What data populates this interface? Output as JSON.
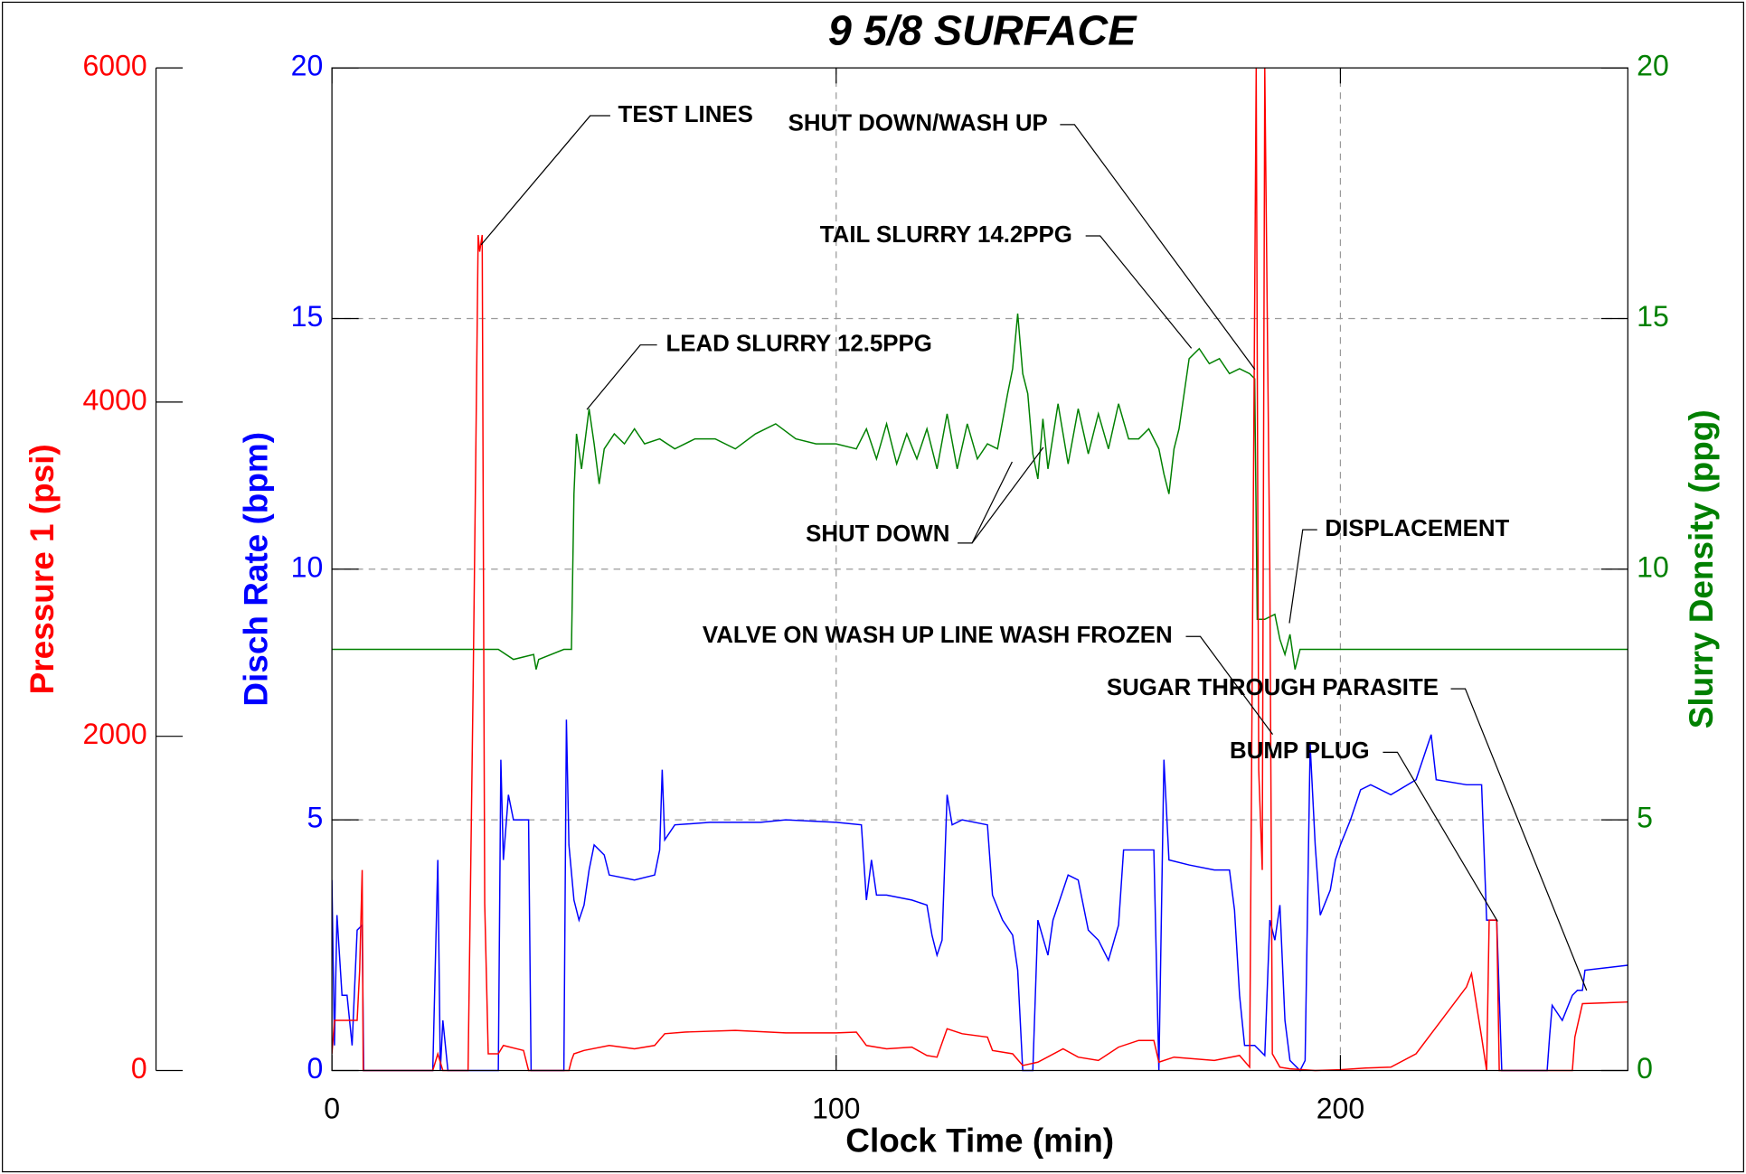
{
  "chart_data": {
    "type": "line",
    "title": "9 5/8 SURFACE",
    "x_label": "Clock Time (min)",
    "xlim": [
      0,
      257
    ],
    "xticks": [
      0,
      100,
      200
    ],
    "grid": true,
    "y_axes": [
      {
        "label": "Pressure 1 (psi)",
        "color": "#ff0000",
        "ylim": [
          0,
          6000
        ],
        "yticks": [
          0,
          2000,
          4000,
          6000
        ]
      },
      {
        "label": "Disch Rate (bpm)",
        "color": "#0000ff",
        "ylim": [
          0,
          20
        ],
        "yticks": [
          0,
          5,
          10,
          15,
          20
        ]
      },
      {
        "label": "Slurry Density (ppg)",
        "color": "#008000",
        "ylim": [
          0,
          20
        ],
        "yticks": [
          0,
          5,
          10,
          15,
          20
        ]
      }
    ],
    "series": [
      {
        "color": "#008000",
        "axis": 2,
        "x": [
          0,
          30,
          33,
          36,
          40,
          40.5,
          41,
          46,
          47.5,
          48,
          48.5,
          49.5,
          50.5,
          51,
          52,
          53,
          54,
          56,
          58,
          60,
          62,
          65,
          68,
          72,
          76,
          80,
          84,
          88,
          92,
          96,
          100,
          104,
          106,
          108,
          110,
          112,
          114,
          116,
          118,
          120,
          122,
          124,
          126,
          128,
          130,
          132,
          134,
          135,
          136,
          137,
          138,
          139,
          140,
          141,
          142,
          144,
          146,
          148,
          150,
          152,
          154,
          156,
          158,
          160,
          162,
          164,
          165,
          166,
          167,
          168,
          170,
          172,
          174,
          176,
          178,
          180,
          182,
          183,
          183.5,
          185,
          187,
          188,
          189,
          190,
          191,
          192,
          195,
          200,
          220,
          240,
          257
        ],
        "values": [
          8.4,
          8.4,
          8.4,
          8.2,
          8.3,
          8.0,
          8.2,
          8.4,
          8.4,
          11.5,
          12.7,
          12.0,
          12.8,
          13.2,
          12.5,
          11.7,
          12.4,
          12.7,
          12.5,
          12.8,
          12.5,
          12.6,
          12.4,
          12.6,
          12.6,
          12.4,
          12.7,
          12.9,
          12.6,
          12.5,
          12.5,
          12.4,
          12.8,
          12.2,
          12.9,
          12.1,
          12.7,
          12.2,
          12.8,
          12.0,
          13.1,
          12.0,
          12.9,
          12.2,
          12.5,
          12.4,
          13.5,
          14.0,
          15.1,
          13.9,
          13.5,
          12.3,
          11.8,
          13.0,
          12.0,
          13.3,
          12.1,
          13.2,
          12.3,
          13.1,
          12.4,
          13.3,
          12.6,
          12.6,
          12.8,
          12.4,
          11.9,
          11.5,
          12.4,
          12.8,
          14.2,
          14.4,
          14.1,
          14.2,
          13.9,
          14.0,
          13.9,
          13.8,
          9.0,
          9.0,
          9.1,
          8.6,
          8.3,
          8.7,
          8.0,
          8.4,
          8.4,
          8.4,
          8.4,
          8.4,
          8.4
        ]
      },
      {
        "color": "#0000ff",
        "axis": 1,
        "x": [
          0,
          0.5,
          1,
          2,
          3,
          4,
          5,
          6,
          6.3,
          20,
          21,
          21.5,
          22,
          23,
          33,
          33.5,
          34,
          35,
          36,
          39,
          39.5,
          46,
          46.5,
          47,
          48,
          49,
          50,
          51,
          52,
          54,
          55,
          60,
          64,
          65,
          65.5,
          66,
          68,
          75,
          85,
          90,
          100,
          105,
          106,
          107,
          108,
          110,
          115,
          118,
          119,
          120,
          121,
          122,
          123,
          125,
          130,
          131,
          133,
          135,
          136,
          137,
          139,
          140,
          142,
          143,
          146,
          148,
          150,
          152,
          154,
          156,
          157,
          160,
          163,
          164,
          165,
          166,
          170,
          175,
          178,
          179,
          180,
          181,
          183,
          185,
          186,
          187,
          188,
          189,
          190,
          192,
          193,
          194,
          195,
          196,
          198,
          199,
          200,
          202,
          204,
          206,
          210,
          215,
          218,
          219,
          225,
          228,
          229,
          231,
          232,
          241,
          241.5,
          242,
          244,
          246,
          247,
          248,
          248.5,
          257
        ],
        "values": [
          3.8,
          0.5,
          3.1,
          1.5,
          1.5,
          0.5,
          2.8,
          2.9,
          0,
          0,
          4.2,
          0,
          1,
          0,
          0,
          6.2,
          4.2,
          5.5,
          5.0,
          5.0,
          0,
          0,
          7.0,
          4.5,
          3.4,
          3.0,
          3.3,
          4.0,
          4.5,
          4.3,
          3.9,
          3.8,
          3.9,
          4.4,
          6.0,
          4.6,
          4.9,
          4.95,
          4.95,
          5.0,
          4.95,
          4.9,
          3.4,
          4.2,
          3.5,
          3.5,
          3.4,
          3.3,
          2.7,
          2.3,
          2.6,
          5.5,
          4.9,
          5.0,
          4.9,
          3.5,
          3.0,
          2.7,
          2.0,
          0,
          0,
          3.0,
          2.3,
          3.0,
          3.9,
          3.8,
          2.8,
          2.6,
          2.2,
          2.9,
          4.4,
          4.4,
          4.4,
          0,
          6.2,
          4.2,
          4.1,
          4.0,
          4.0,
          3.2,
          1.5,
          0.5,
          0.5,
          0.3,
          3.0,
          2.6,
          3.3,
          1.0,
          0.2,
          0,
          0.2,
          6.5,
          4.5,
          3.1,
          3.6,
          4.2,
          4.5,
          5.0,
          5.6,
          5.7,
          5.5,
          5.8,
          6.7,
          5.8,
          5.7,
          5.7,
          3.0,
          3.0,
          0,
          0,
          0.7,
          1.3,
          1.0,
          1.5,
          1.6,
          1.6,
          2.0,
          2.1
        ]
      },
      {
        "color": "#ff0000",
        "axis": 0,
        "x": [
          0,
          0.5,
          5,
          5.5,
          6,
          6.2,
          20,
          21,
          22,
          27,
          28,
          28.5,
          29,
          29.3,
          29.8,
          30.3,
          31,
          33,
          34,
          38,
          39,
          47,
          47.5,
          48,
          50,
          55,
          60,
          64,
          66,
          70,
          80,
          90,
          100,
          104,
          106,
          110,
          115,
          118,
          120,
          122,
          125,
          130,
          131,
          135,
          137,
          140,
          145,
          148,
          152,
          156,
          160,
          163,
          164,
          167,
          175,
          180,
          182,
          183.3,
          183.8,
          184.5,
          185,
          186,
          186.5,
          188,
          190,
          195,
          200,
          205,
          210,
          215,
          220,
          225,
          226,
          228,
          229,
          229.5,
          231,
          231.5,
          246,
          246.5,
          248,
          257
        ],
        "values": [
          100,
          300,
          300,
          600,
          1200,
          0,
          0,
          100,
          0,
          0,
          2300,
          3600,
          5000,
          4900,
          5000,
          1000,
          100,
          100,
          150,
          120,
          0,
          0,
          60,
          100,
          120,
          150,
          130,
          150,
          220,
          230,
          240,
          225,
          225,
          230,
          150,
          130,
          140,
          90,
          80,
          250,
          220,
          200,
          120,
          100,
          30,
          50,
          130,
          80,
          60,
          140,
          180,
          180,
          50,
          80,
          60,
          90,
          20,
          6000,
          1800,
          1200,
          6000,
          3000,
          100,
          20,
          10,
          0,
          5,
          15,
          20,
          100,
          300,
          500,
          580,
          200,
          0,
          900,
          900,
          0,
          0,
          200,
          400,
          410
        ]
      }
    ],
    "annotations": [
      "TEST LINES",
      "SHUT DOWN/WASH UP",
      "TAIL SLURRY 14.2PPG",
      "LEAD SLURRY 12.5PPG",
      "SHUT DOWN",
      "DISPLACEMENT",
      "VALVE ON WASH UP LINE WASH FROZEN",
      "SUGAR THROUGH PARASITE",
      "BUMP PLUG"
    ]
  }
}
